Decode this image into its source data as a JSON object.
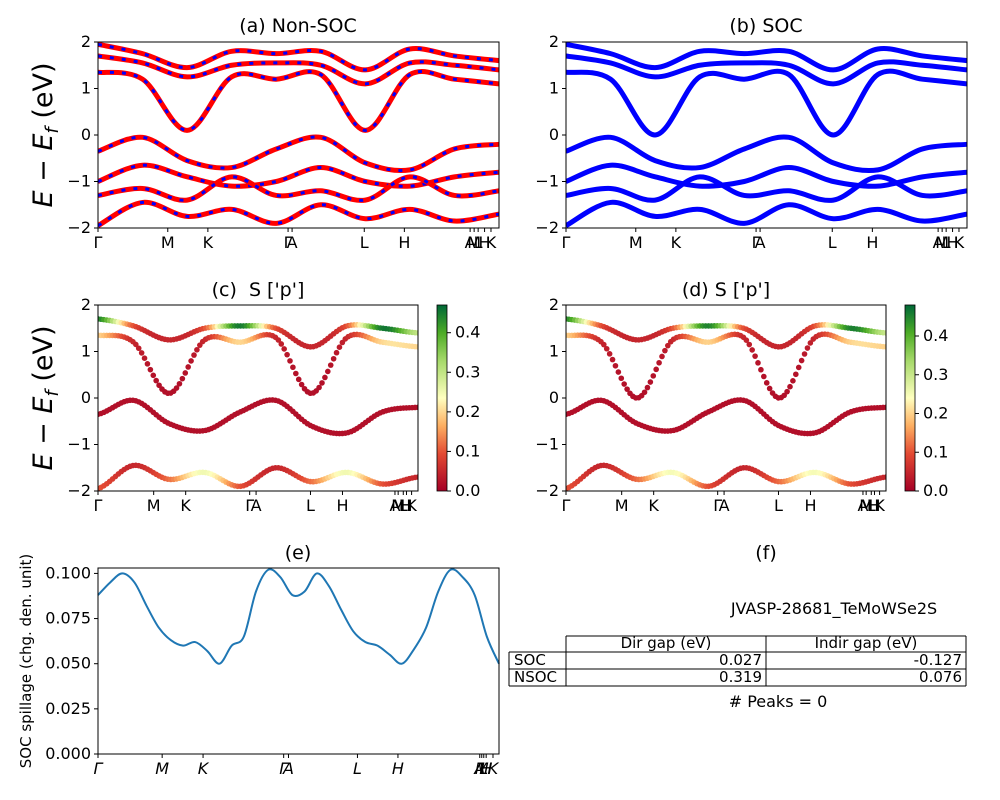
{
  "figure": {
    "panel_titles": [
      "(a) Non-SOC",
      "(b) SOC",
      "(c)  S ['p']",
      "(d) S ['p']",
      "(e)",
      "(f)"
    ],
    "band_ylabel_main": "E − E",
    "band_ylabel_sub": "f",
    "band_ylabel_unit": " (eV)",
    "band_yticks": [
      "2",
      "1",
      "0",
      "−1",
      "−2"
    ],
    "kpath_labels": [
      "Γ",
      "M",
      "K",
      "Γ",
      "A",
      "L",
      "H",
      "A",
      "M",
      "L",
      "H",
      "K"
    ],
    "colorbar_ticks": [
      "0.0",
      "0.1",
      "0.2",
      "0.3",
      "0.4"
    ],
    "spillage_ylabel": "SOC spillage (chg. den. unit)",
    "spillage_yticks": [
      "0.000",
      "0.025",
      "0.050",
      "0.075",
      "0.100"
    ],
    "spillage_xticks": [
      "Γ",
      "M",
      "K",
      "Γ",
      "A",
      "L",
      "H",
      "A",
      "M",
      "L",
      "H",
      "K"
    ],
    "material_id": "JVASP-28681_TeMoWSe2S",
    "table": {
      "headers": [
        "",
        "Dir gap (eV)",
        "Indir gap (eV)"
      ],
      "rows": [
        {
          "label": "SOC",
          "dir": "0.027",
          "indir": "-0.127"
        },
        {
          "label": "NSOC",
          "dir": "0.319",
          "indir": "0.076"
        }
      ]
    },
    "peaks": "# Peaks = 0",
    "colors": {
      "nsoc_band": "#ff0000",
      "soc_band": "#0000ff",
      "spillage_line": "#1f77b4"
    }
  },
  "chart_data": [
    {
      "type": "line",
      "title": "(a) Non-SOC",
      "ylabel": "E − E_f (eV)",
      "ylim": [
        -2,
        2
      ],
      "x_ticks": [
        "Γ",
        "M",
        "K",
        "Γ",
        "A",
        "L",
        "H",
        "A",
        "M",
        "L",
        "H",
        "K"
      ],
      "series": [
        {
          "values": [
            1.7,
            1.55,
            1.25,
            1.5,
            1.55,
            1.5,
            1.1,
            1.55,
            1.5,
            1.4
          ]
        },
        {
          "values": [
            1.95,
            1.75,
            1.45,
            1.8,
            1.75,
            1.8,
            1.4,
            1.85,
            1.7,
            1.6
          ]
        },
        {
          "values": [
            1.35,
            1.2,
            0.1,
            1.25,
            1.2,
            1.3,
            0.1,
            1.3,
            1.2,
            1.1
          ]
        },
        {
          "values": [
            -0.35,
            -0.05,
            -0.55,
            -0.7,
            -0.3,
            -0.05,
            -0.6,
            -0.75,
            -0.3,
            -0.2
          ]
        },
        {
          "values": [
            -1.0,
            -0.65,
            -0.9,
            -1.1,
            -1.0,
            -0.7,
            -1.0,
            -1.1,
            -0.9,
            -0.8
          ]
        },
        {
          "values": [
            -1.3,
            -1.15,
            -1.4,
            -0.9,
            -1.3,
            -1.2,
            -1.4,
            -0.9,
            -1.3,
            -1.2
          ]
        },
        {
          "values": [
            -1.95,
            -1.45,
            -1.75,
            -1.6,
            -1.9,
            -1.5,
            -1.8,
            -1.6,
            -1.85,
            -1.7
          ]
        }
      ]
    },
    {
      "type": "line",
      "title": "(b) SOC",
      "ylim": [
        -2,
        2
      ],
      "x_ticks": [
        "Γ",
        "M",
        "K",
        "Γ",
        "A",
        "L",
        "H",
        "A",
        "M",
        "L",
        "H",
        "K"
      ],
      "series": [
        {
          "values": [
            1.7,
            1.55,
            1.25,
            1.5,
            1.55,
            1.5,
            1.1,
            1.55,
            1.5,
            1.4
          ]
        },
        {
          "values": [
            1.95,
            1.75,
            1.45,
            1.8,
            1.75,
            1.8,
            1.4,
            1.85,
            1.7,
            1.6
          ]
        },
        {
          "values": [
            1.35,
            1.2,
            0.0,
            1.25,
            1.2,
            1.3,
            0.0,
            1.3,
            1.2,
            1.1
          ]
        },
        {
          "values": [
            -0.35,
            -0.05,
            -0.55,
            -0.7,
            -0.3,
            -0.05,
            -0.6,
            -0.75,
            -0.3,
            -0.2
          ]
        },
        {
          "values": [
            -1.0,
            -0.65,
            -0.9,
            -1.1,
            -1.0,
            -0.7,
            -1.0,
            -1.1,
            -0.9,
            -0.8
          ]
        },
        {
          "values": [
            -1.3,
            -1.15,
            -1.4,
            -0.9,
            -1.3,
            -1.2,
            -1.4,
            -0.9,
            -1.3,
            -1.2
          ]
        },
        {
          "values": [
            -1.95,
            -1.45,
            -1.75,
            -1.6,
            -1.9,
            -1.5,
            -1.8,
            -1.6,
            -1.85,
            -1.7
          ]
        }
      ]
    },
    {
      "type": "scatter",
      "title": "(c)  S ['p']",
      "ylabel": "E − E_f (eV)",
      "ylim": [
        -2,
        2
      ],
      "colorbar": [
        0.0,
        0.47
      ],
      "series": [
        {
          "values": [
            1.7,
            1.55,
            1.25,
            1.5,
            1.55,
            1.5,
            1.1,
            1.55,
            1.5,
            1.4
          ],
          "color_values": [
            0.45,
            0.1,
            0.05,
            0.1,
            0.45,
            0.1,
            0.05,
            0.1,
            0.45,
            0.3
          ]
        },
        {
          "values": [
            1.35,
            1.2,
            0.1,
            1.25,
            1.2,
            1.3,
            0.1,
            1.3,
            1.2,
            1.1
          ],
          "color_values": [
            0.2,
            0.05,
            0.02,
            0.05,
            0.2,
            0.05,
            0.02,
            0.05,
            0.2,
            0.2
          ]
        },
        {
          "values": [
            -0.35,
            -0.05,
            -0.55,
            -0.7,
            -0.3,
            -0.05,
            -0.6,
            -0.75,
            -0.3,
            -0.2
          ],
          "color_values": [
            0.02,
            0.02,
            0.02,
            0.02,
            0.02,
            0.02,
            0.02,
            0.02,
            0.02,
            0.02
          ]
        },
        {
          "values": [
            -1.95,
            -1.45,
            -1.75,
            -1.6,
            -1.9,
            -1.5,
            -1.8,
            -1.6,
            -1.85,
            -1.7
          ],
          "color_values": [
            0.1,
            0.05,
            0.12,
            0.25,
            0.1,
            0.05,
            0.12,
            0.25,
            0.1,
            0.05
          ]
        }
      ]
    },
    {
      "type": "scatter",
      "title": "(d) S ['p']",
      "ylim": [
        -2,
        2
      ],
      "colorbar": [
        0.0,
        0.48
      ],
      "series": [
        {
          "values": [
            1.7,
            1.55,
            1.25,
            1.5,
            1.55,
            1.5,
            1.1,
            1.55,
            1.5,
            1.4
          ],
          "color_values": [
            0.45,
            0.1,
            0.05,
            0.1,
            0.45,
            0.1,
            0.05,
            0.1,
            0.45,
            0.3
          ]
        },
        {
          "values": [
            1.35,
            1.2,
            0.0,
            1.25,
            1.2,
            1.3,
            0.0,
            1.3,
            1.2,
            1.1
          ],
          "color_values": [
            0.2,
            0.05,
            0.02,
            0.05,
            0.2,
            0.05,
            0.02,
            0.05,
            0.2,
            0.2
          ]
        },
        {
          "values": [
            -0.35,
            -0.05,
            -0.55,
            -0.7,
            -0.3,
            -0.05,
            -0.6,
            -0.75,
            -0.3,
            -0.2
          ],
          "color_values": [
            0.02,
            0.02,
            0.02,
            0.02,
            0.02,
            0.02,
            0.02,
            0.02,
            0.02,
            0.02
          ]
        },
        {
          "values": [
            -1.95,
            -1.45,
            -1.75,
            -1.6,
            -1.9,
            -1.5,
            -1.8,
            -1.6,
            -1.85,
            -1.7
          ],
          "color_values": [
            0.1,
            0.05,
            0.12,
            0.25,
            0.1,
            0.05,
            0.12,
            0.25,
            0.1,
            0.05
          ]
        }
      ]
    },
    {
      "type": "line",
      "title": "(e)",
      "ylabel": "SOC spillage (chg. den. unit)",
      "ylim": [
        0,
        0.103
      ],
      "series": [
        {
          "values": [
            0.088,
            0.095,
            0.1,
            0.095,
            0.082,
            0.07,
            0.063,
            0.06,
            0.062,
            0.057,
            0.05,
            0.06,
            0.065,
            0.09,
            0.102,
            0.098,
            0.088,
            0.09,
            0.1,
            0.093,
            0.08,
            0.068,
            0.062,
            0.06,
            0.055,
            0.05,
            0.058,
            0.07,
            0.09,
            0.102,
            0.098,
            0.088,
            0.065,
            0.05
          ]
        }
      ]
    }
  ]
}
